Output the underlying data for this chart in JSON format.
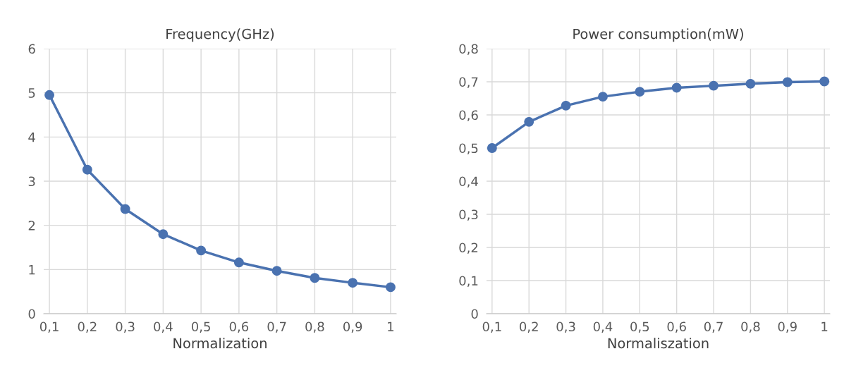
{
  "chart_data": [
    {
      "type": "line",
      "title": "Frequency(GHz)",
      "xlabel": "Normalization",
      "categories": [
        "0,1",
        "0,2",
        "0,3",
        "0,4",
        "0,5",
        "0,6",
        "0,7",
        "0,8",
        "0,9",
        "1"
      ],
      "series": [
        {
          "color": "#4a72b0",
          "values": [
            4.95,
            3.26,
            2.37,
            1.8,
            1.43,
            1.16,
            0.97,
            0.81,
            0.7,
            0.6
          ]
        }
      ],
      "ylim": [
        0,
        6
      ],
      "yticks": [
        0,
        1,
        2,
        3,
        4,
        5,
        6
      ],
      "grid": true,
      "marker": "circle",
      "line_style": "solid"
    },
    {
      "type": "line",
      "title": "Power consumption(mW)",
      "xlabel": "Normaliszation",
      "categories": [
        "0,1",
        "0,2",
        "0,3",
        "0,4",
        "0,5",
        "0,6",
        "0,7",
        "0,8",
        "0,9",
        "1"
      ],
      "series": [
        {
          "color": "#4a72b0",
          "values": [
            0.5,
            0.579,
            0.628,
            0.655,
            0.67,
            0.682,
            0.688,
            0.694,
            0.699,
            0.701
          ]
        }
      ],
      "ylim": [
        0,
        0.8
      ],
      "yticks": [
        0,
        {
          "value": 0.1,
          "label": "0,1"
        },
        {
          "value": 0.2,
          "label": "0,2"
        },
        {
          "value": 0.3,
          "label": "0,3"
        },
        {
          "value": 0.4,
          "label": "0,4"
        },
        {
          "value": 0.5,
          "label": "0,5"
        },
        {
          "value": 0.6,
          "label": "0,6"
        },
        {
          "value": 0.7,
          "label": "0,7"
        },
        {
          "value": 0.8,
          "label": "0,8"
        }
      ],
      "grid": true,
      "marker": "circle",
      "line_style": "solid"
    }
  ]
}
